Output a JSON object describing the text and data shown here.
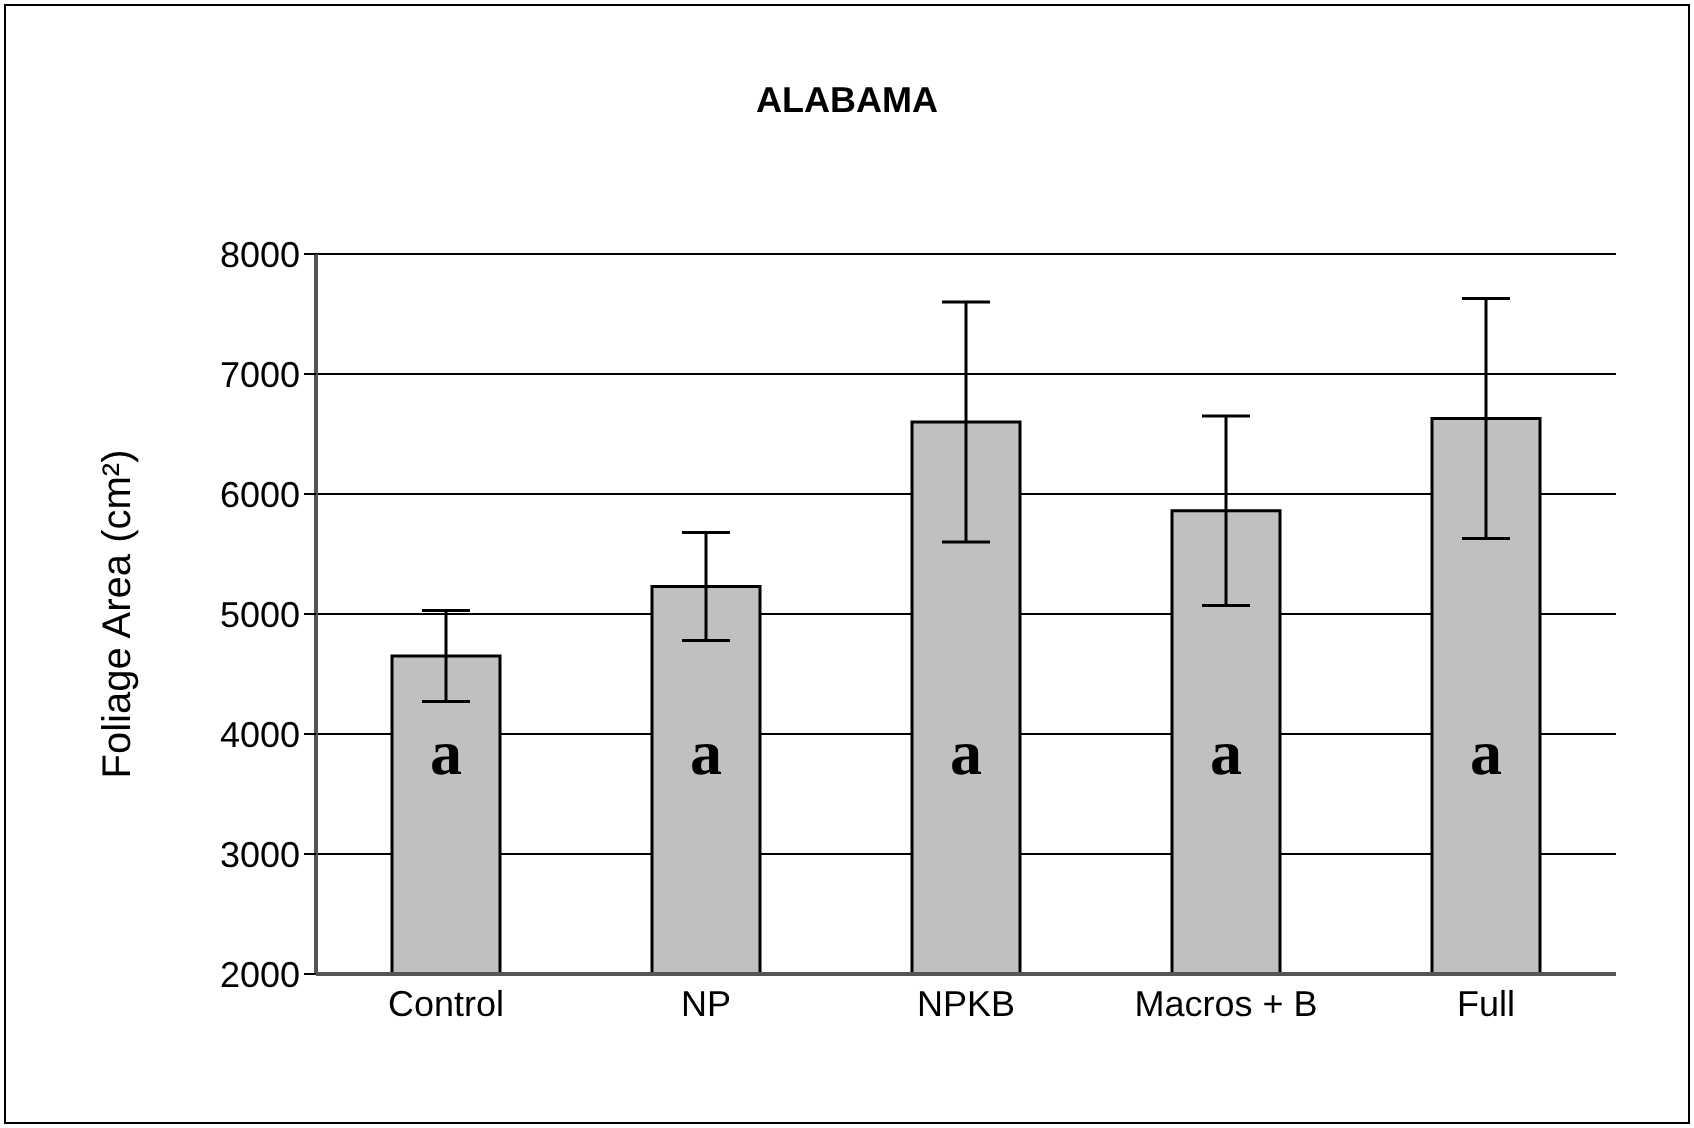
{
  "chart_data": {
    "type": "bar",
    "title": "ALABAMA",
    "ylabel": "Foliage Area (cm²)",
    "categories": [
      "Control",
      "NP",
      "NPKB",
      "Macros + B",
      "Full"
    ],
    "values": [
      4650,
      5230,
      6600,
      5860,
      6630
    ],
    "errors": [
      380,
      450,
      1000,
      790,
      1000
    ],
    "color": "#c0c0c0",
    "ylim": [
      2000,
      8000
    ],
    "yticks": [
      2000,
      3000,
      4000,
      5000,
      6000,
      7000,
      8000
    ],
    "grid": "y",
    "annotations": [
      "a",
      "a",
      "a",
      "a",
      "a"
    ]
  }
}
